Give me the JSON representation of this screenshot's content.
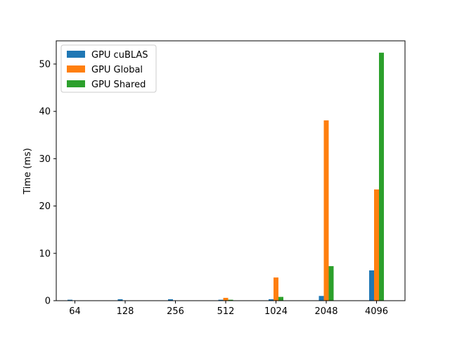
{
  "chart_data": {
    "type": "bar",
    "categories": [
      "64",
      "128",
      "256",
      "512",
      "1024",
      "2048",
      "4096"
    ],
    "series": [
      {
        "name": "GPU cuBLAS",
        "color": "#1f77b4",
        "values": [
          0.2,
          0.3,
          0.3,
          0.2,
          0.3,
          1.0,
          6.4
        ]
      },
      {
        "name": "GPU Global",
        "color": "#ff7f0e",
        "values": [
          0.02,
          0.03,
          0.05,
          0.6,
          4.9,
          38.1,
          23.5
        ]
      },
      {
        "name": "GPU Shared",
        "color": "#2ca02c",
        "values": [
          0.02,
          0.03,
          0.05,
          0.2,
          0.8,
          7.3,
          52.4
        ]
      }
    ],
    "xlabel": "",
    "ylabel": "Time (ms)",
    "ylim": [
      0,
      54.9
    ],
    "yticks": [
      0,
      10,
      20,
      30,
      40,
      50
    ],
    "grid": false,
    "legend_position": "top-left"
  }
}
